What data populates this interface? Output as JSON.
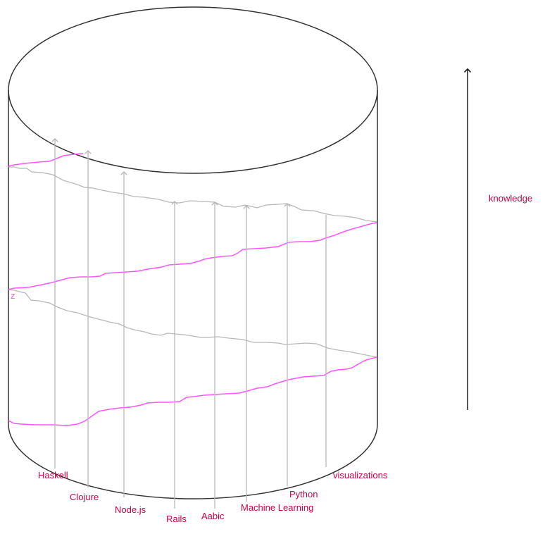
{
  "colors": {
    "outline": "#333333",
    "helix_front": "#ff55ff",
    "helix_back": "#b8b8b8",
    "arrows": "#b8b8b8",
    "label": "#cc0044",
    "axis": "#111111"
  },
  "cylinder_label": "z",
  "axis_label": "knowledge",
  "topics": [
    {
      "name": "Haskell"
    },
    {
      "name": "Clojure"
    },
    {
      "name": "Node.js"
    },
    {
      "name": "Rails"
    },
    {
      "name": "Aabic"
    },
    {
      "name": "Machine Learning"
    },
    {
      "name": "Python"
    },
    {
      "name": "visualizations"
    }
  ]
}
